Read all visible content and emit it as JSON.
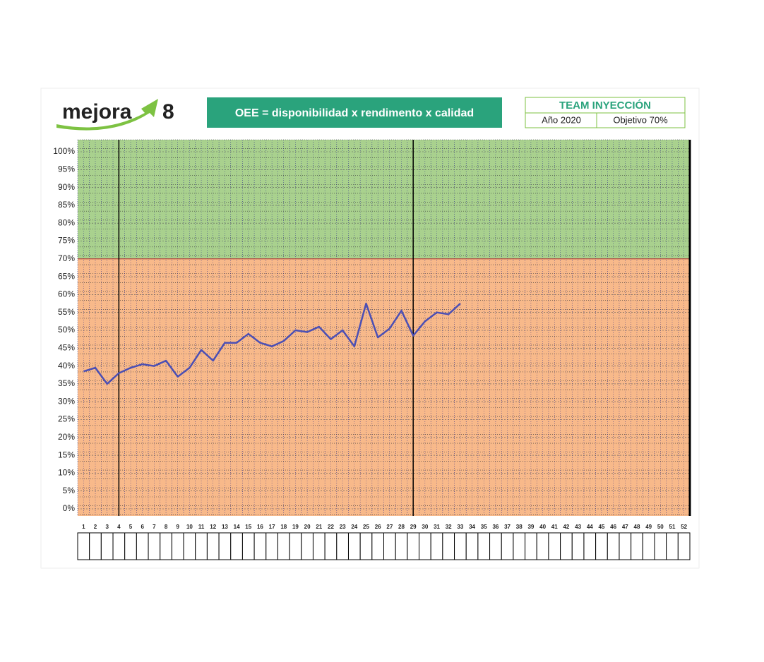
{
  "header": {
    "logo": "mejora",
    "logo_number": "8",
    "team": "TEAM INYECCIÓN",
    "year": "Año 2020"
  },
  "chart_data": {
    "type": "line",
    "title": "OEE = disponibilidad x rendimento x calidad",
    "categories": [
      1,
      2,
      3,
      4,
      5,
      6,
      7,
      8,
      9,
      10,
      11,
      12,
      13,
      14,
      15,
      16,
      17,
      18,
      19,
      20,
      21,
      22,
      23,
      24,
      25,
      26,
      27,
      28,
      29,
      30,
      31,
      32,
      33,
      34,
      35,
      36,
      37,
      38,
      39,
      40,
      41,
      42,
      43,
      44,
      45,
      46,
      47,
      48,
      49,
      50,
      51,
      52
    ],
    "series": [
      {
        "name": "OEE",
        "color": "#4b4fb4",
        "values": [
          38.5,
          39.5,
          35,
          38,
          39.5,
          40.5,
          40,
          41.5,
          37,
          39.5,
          44.5,
          41.5,
          46.5,
          46.5,
          49,
          46.5,
          45.5,
          47,
          50,
          49.5,
          51,
          47.5,
          50,
          45.5,
          57.5,
          48,
          50.5,
          55.5,
          48.5,
          52.5,
          55,
          54.5,
          57.5,
          null,
          null,
          null,
          null,
          null,
          null,
          null,
          null,
          null,
          null,
          null,
          null,
          null,
          null,
          null,
          null,
          null,
          null,
          null
        ]
      }
    ],
    "ylim": [
      0,
      100
    ],
    "yticks": [
      {
        "value": 0,
        "label": "0%"
      },
      {
        "value": 5,
        "label": "5%"
      },
      {
        "value": 10,
        "label": "10%"
      },
      {
        "value": 15,
        "label": "15%"
      },
      {
        "value": 20,
        "label": "20%"
      },
      {
        "value": 25,
        "label": "25%"
      },
      {
        "value": 30,
        "label": "30%"
      },
      {
        "value": 35,
        "label": "35%"
      },
      {
        "value": 40,
        "label": "40%"
      },
      {
        "value": 45,
        "label": "45%"
      },
      {
        "value": 50,
        "label": "50%"
      },
      {
        "value": 55,
        "label": "55%"
      },
      {
        "value": 60,
        "label": "60%"
      },
      {
        "value": 65,
        "label": "65%"
      },
      {
        "value": 70,
        "label": "70%"
      },
      {
        "value": 75,
        "label": "75%"
      },
      {
        "value": 80,
        "label": "80%"
      },
      {
        "value": 85,
        "label": "85%"
      },
      {
        "value": 90,
        "label": "90%"
      },
      {
        "value": 95,
        "label": "95%"
      },
      {
        "value": 100,
        "label": "100%"
      }
    ],
    "target": {
      "value": 70,
      "label": "Objetivo 70%"
    },
    "grid": true
  }
}
